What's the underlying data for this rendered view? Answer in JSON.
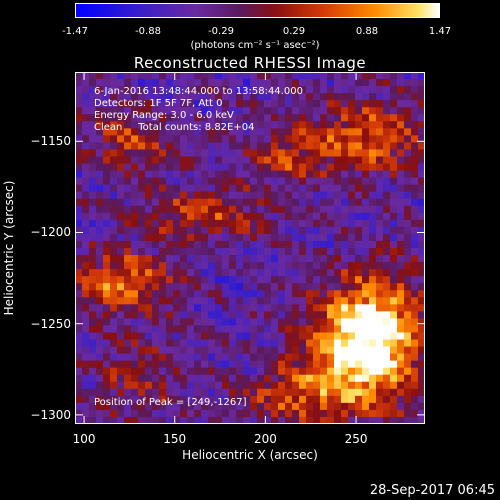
{
  "colorbar": {
    "ticks": [
      "-1.47",
      "-0.88",
      "-0.29",
      "0.29",
      "0.88",
      "1.47"
    ],
    "unit": "(photons cm⁻² s⁻¹ asec⁻²)"
  },
  "chart_data": {
    "type": "heatmap",
    "title": "Reconstructed RHESSI Image",
    "xlabel": "Heliocentric X (arcsec)",
    "ylabel": "Heliocentric Y (arcsec)",
    "xlim": [
      95,
      288
    ],
    "ylim": [
      -1305,
      -1112
    ],
    "xticks": [
      100,
      150,
      200,
      250
    ],
    "yticks": [
      -1150,
      -1200,
      -1250,
      -1300
    ],
    "value_range": [
      -1.47,
      1.47
    ],
    "peak": [
      249,
      -1267
    ]
  },
  "info": {
    "line1": "6-Jan-2016 13:48:44.000 to 13:58:44.000",
    "line2": "Detectors: 1F 5F 7F, Att 0",
    "line3": "Energy Range: 3.0 - 6.0 keV",
    "line4": "Clean     Total counts: 8.82E+04",
    "peak": "Position of Peak = [249,-1267]"
  },
  "timestamp": "28-Sep-2017 06:45"
}
